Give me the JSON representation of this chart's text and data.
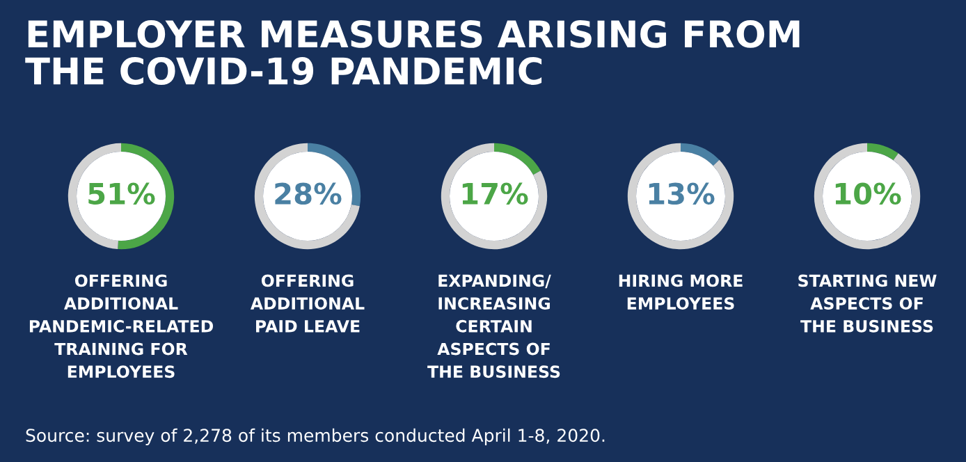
{
  "chart_data": [
    {
      "type": "other",
      "title": "EMPLOYER MEASURES ARISING FROM\nTHE COVID-19 PANDEMIC",
      "annotations": [
        "Source: survey of 2,278 of its members conducted April 1-8, 2020."
      ]
    },
    {
      "type": "donut",
      "categories": [
        null,
        null
      ],
      "values": [
        51,
        49
      ],
      "colors": [
        "#4ca647",
        "#d3d3d3"
      ],
      "value_labels": [
        "51%",
        null
      ],
      "xlabel": "OFFERING\nADDITIONAL\nPANDEMIC-RELATED\nTRAINING FOR\nEMPLOYEES"
    },
    {
      "type": "donut",
      "categories": [
        null,
        null
      ],
      "values": [
        28,
        72
      ],
      "colors": [
        "#4a80a3",
        "#d3d3d3"
      ],
      "value_labels": [
        "28%",
        null
      ],
      "xlabel": "OFFERING\nADDITIONAL\nPAID LEAVE"
    },
    {
      "type": "donut",
      "categories": [
        null,
        null
      ],
      "values": [
        17,
        83
      ],
      "colors": [
        "#4ca647",
        "#d3d3d3"
      ],
      "value_labels": [
        "17%",
        null
      ],
      "xlabel": "EXPANDING/\nINCREASING\nCERTAIN\nASPECTS OF\nTHE BUSINESS"
    },
    {
      "type": "donut",
      "categories": [
        null,
        null
      ],
      "values": [
        13,
        87
      ],
      "colors": [
        "#4a80a3",
        "#d3d3d3"
      ],
      "value_labels": [
        "13%",
        null
      ],
      "xlabel": "HIRING MORE\nEMPLOYEES"
    },
    {
      "type": "donut",
      "categories": [
        null,
        null
      ],
      "values": [
        10,
        90
      ],
      "colors": [
        "#4ca647",
        "#d3d3d3"
      ],
      "value_labels": [
        "10%",
        null
      ],
      "xlabel": "STARTING NEW\nASPECTS OF\nTHE BUSINESS"
    }
  ]
}
